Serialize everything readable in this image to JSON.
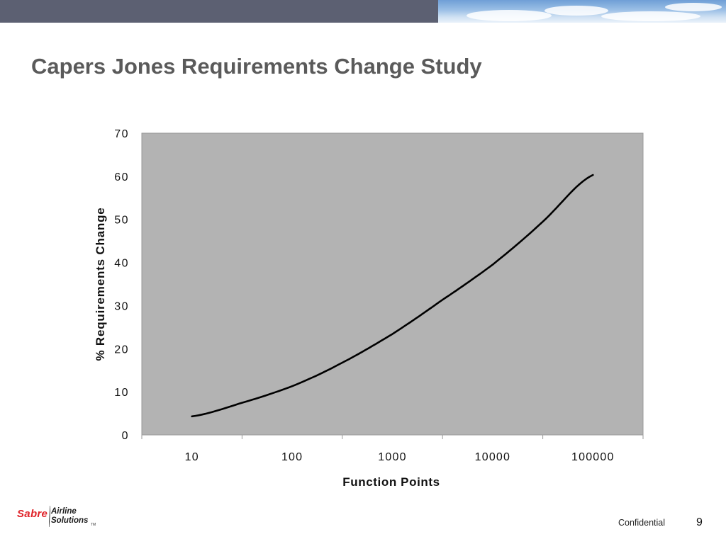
{
  "slide": {
    "title": "Capers Jones Requirements Change Study",
    "footer": {
      "logo_brand": "Sabre",
      "logo_line1": "Airline",
      "logo_line2": "Solutions",
      "logo_tm": "TM",
      "confidential": "Confidential",
      "page_number": "9"
    }
  },
  "colors": {
    "top_bar": "#5c6072",
    "title": "#5a5a5a",
    "plot_background": "#b3b3b3",
    "line": "#000000",
    "brand_red": "#e0242a"
  },
  "chart_data": {
    "type": "line",
    "title": "",
    "xlabel": "Function Points",
    "ylabel": "% Requirements Change",
    "x_scale": "log",
    "x_ticks": [
      "10",
      "100",
      "1000",
      "10000",
      "100000"
    ],
    "y_ticks": [
      "0",
      "10",
      "20",
      "30",
      "40",
      "50",
      "60",
      "70"
    ],
    "xlim": [
      10,
      100000
    ],
    "ylim": [
      0,
      70
    ],
    "grid": false,
    "legend": "none",
    "series": [
      {
        "x": [
          10,
          30,
          100,
          300,
          1000,
          3000,
          10000,
          30000,
          100000
        ],
        "y": [
          4.3,
          7.3,
          11.3,
          16.5,
          23.4,
          31.0,
          39.5,
          49.0,
          60.3
        ]
      }
    ]
  }
}
